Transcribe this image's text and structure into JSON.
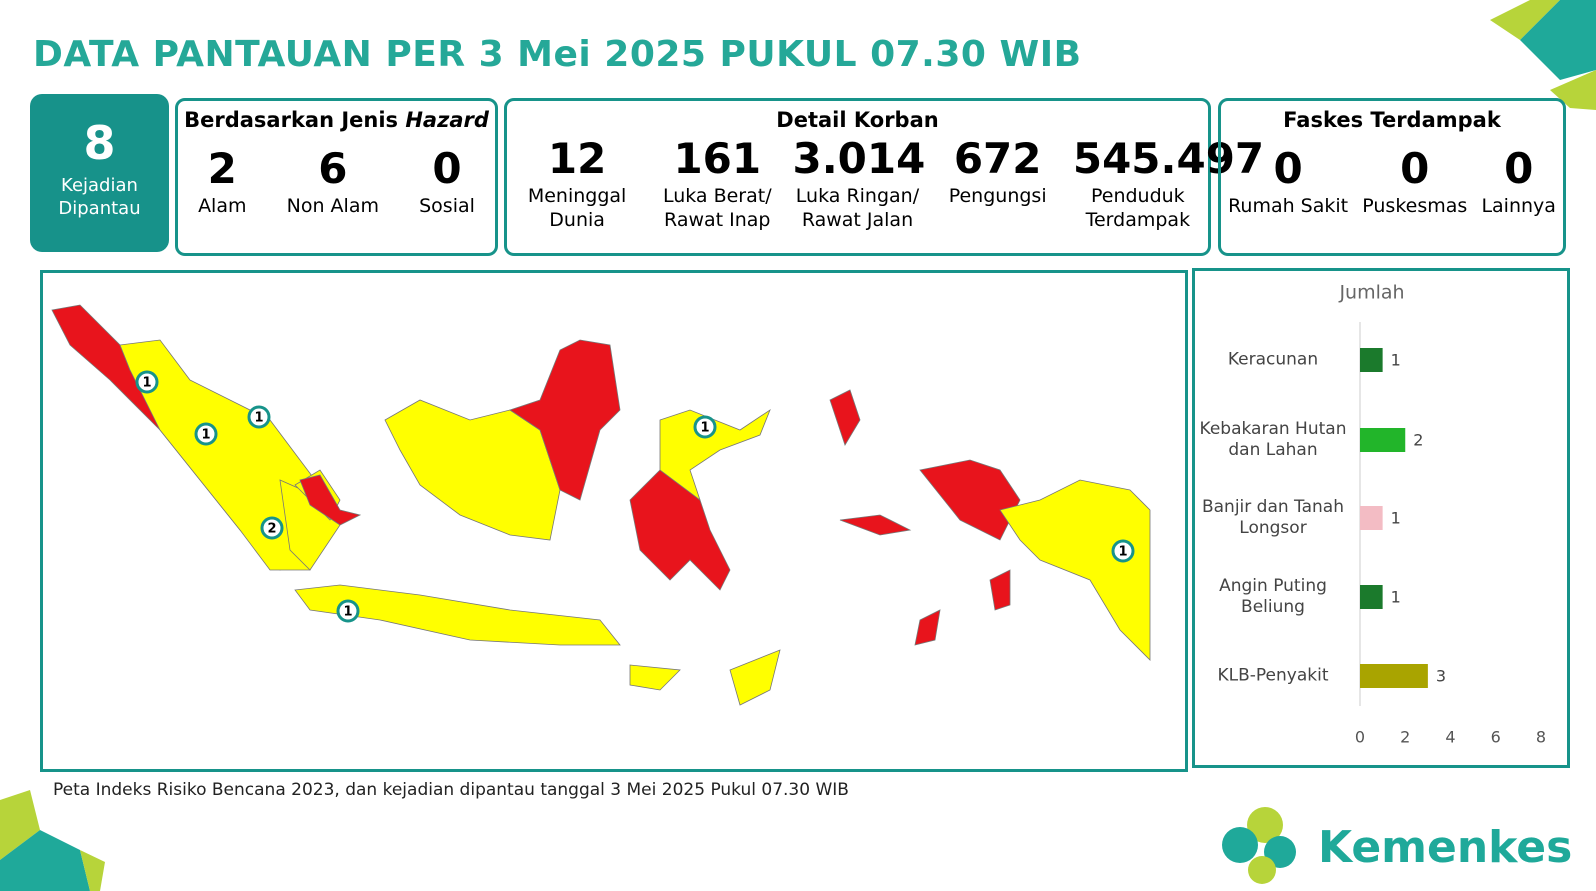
{
  "header": {
    "title": "DATA PANTAUAN PER 3 Mei 2025 PUKUL 07.30 WIB"
  },
  "summary": {
    "count": "8",
    "label": "Kejadian Dipantau"
  },
  "hazard": {
    "title": "Berdasarkan Jenis",
    "title_italic": "Hazard",
    "items": [
      {
        "value": "2",
        "label": "Alam"
      },
      {
        "value": "6",
        "label": "Non Alam"
      },
      {
        "value": "0",
        "label": "Sosial"
      }
    ]
  },
  "korban": {
    "title": "Detail Korban",
    "items": [
      {
        "value": "12",
        "label": "Meninggal Dunia"
      },
      {
        "value": "161",
        "label": "Luka Berat/ Rawat Inap"
      },
      {
        "value": "3.014",
        "label": "Luka Ringan/ Rawat Jalan"
      },
      {
        "value": "672",
        "label": "Pengungsi"
      },
      {
        "value": "545.497",
        "label": "Penduduk Terdampak"
      }
    ]
  },
  "faskes": {
    "title": "Faskes Terdampak",
    "items": [
      {
        "value": "0",
        "label": "Rumah Sakit"
      },
      {
        "value": "0",
        "label": "Puskesmas"
      },
      {
        "value": "0",
        "label": "Lainnya"
      }
    ]
  },
  "map": {
    "markers": [
      "1",
      "1",
      "1",
      "2",
      "1",
      "1",
      "1"
    ]
  },
  "chart_data": {
    "type": "bar",
    "orientation": "horizontal",
    "x_label": "Jumlah",
    "categories": [
      "Keracunan",
      "Kebakaran Hutan dan Lahan",
      "Banjir dan Tanah Longsor",
      "Angin Puting Beliung",
      "KLB-Penyakit"
    ],
    "values": [
      1,
      2,
      1,
      1,
      3
    ],
    "colors": [
      "#1b7a2c",
      "#22b52a",
      "#f3bcc4",
      "#1b7a2c",
      "#a9a400"
    ],
    "xlim": [
      0,
      8
    ],
    "xticks": [
      0,
      2,
      4,
      6,
      8
    ]
  },
  "caption": "Peta Indeks Risiko Bencana 2023, dan kejadian dipantau tanggal 3 Mei 2025 Pukul 07.30 WIB",
  "logo": "Kemenkes"
}
